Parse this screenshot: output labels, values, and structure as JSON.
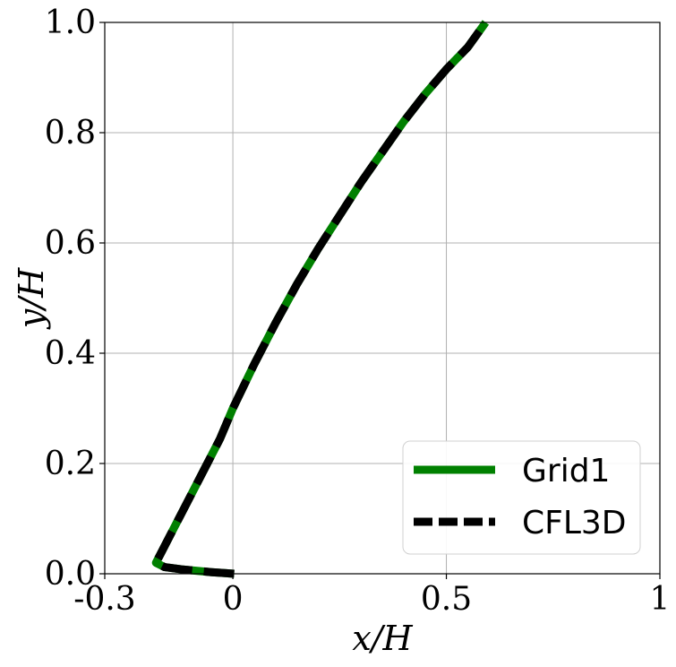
{
  "chart_data": {
    "type": "line",
    "xlabel": "x/H",
    "ylabel": "y/H",
    "xlim": [
      -0.3,
      1.0
    ],
    "ylim": [
      0.0,
      1.0
    ],
    "x_ticks": [
      {
        "value": -0.3,
        "label": "-0.3"
      },
      {
        "value": 0.0,
        "label": "0"
      },
      {
        "value": 0.5,
        "label": "0.5"
      },
      {
        "value": 1.0,
        "label": "1"
      }
    ],
    "y_ticks": [
      {
        "value": 0.0,
        "label": "0.0"
      },
      {
        "value": 0.2,
        "label": "0.2"
      },
      {
        "value": 0.4,
        "label": "0.4"
      },
      {
        "value": 0.6,
        "label": "0.6"
      },
      {
        "value": 0.8,
        "label": "0.8"
      },
      {
        "value": 1.0,
        "label": "1.0"
      }
    ],
    "grid": true,
    "legend_position": "bottom-right",
    "series": [
      {
        "name": "Grid1",
        "color": "#008000",
        "style": "solid",
        "points": [
          [
            0.003,
            0.0
          ],
          [
            -0.05,
            0.003
          ],
          [
            -0.12,
            0.008
          ],
          [
            -0.16,
            0.012
          ],
          [
            -0.18,
            0.02
          ],
          [
            -0.17,
            0.035
          ],
          [
            -0.14,
            0.08
          ],
          [
            -0.1,
            0.14
          ],
          [
            -0.06,
            0.2
          ],
          [
            -0.03,
            0.245
          ],
          [
            0.0,
            0.3
          ],
          [
            0.05,
            0.38
          ],
          [
            0.1,
            0.455
          ],
          [
            0.15,
            0.525
          ],
          [
            0.2,
            0.59
          ],
          [
            0.25,
            0.65
          ],
          [
            0.3,
            0.71
          ],
          [
            0.35,
            0.765
          ],
          [
            0.4,
            0.82
          ],
          [
            0.45,
            0.87
          ],
          [
            0.5,
            0.915
          ],
          [
            0.55,
            0.955
          ],
          [
            0.592,
            1.0
          ]
        ]
      },
      {
        "name": "CFL3D",
        "color": "#000000",
        "style": "dashed",
        "points": [
          [
            0.003,
            0.0
          ],
          [
            -0.05,
            0.003
          ],
          [
            -0.12,
            0.008
          ],
          [
            -0.16,
            0.012
          ],
          [
            -0.18,
            0.02
          ],
          [
            -0.17,
            0.035
          ],
          [
            -0.14,
            0.08
          ],
          [
            -0.1,
            0.14
          ],
          [
            -0.06,
            0.2
          ],
          [
            -0.03,
            0.245
          ],
          [
            0.0,
            0.3
          ],
          [
            0.05,
            0.38
          ],
          [
            0.1,
            0.455
          ],
          [
            0.15,
            0.525
          ],
          [
            0.2,
            0.59
          ],
          [
            0.25,
            0.65
          ],
          [
            0.3,
            0.71
          ],
          [
            0.35,
            0.765
          ],
          [
            0.4,
            0.82
          ],
          [
            0.45,
            0.87
          ],
          [
            0.5,
            0.915
          ],
          [
            0.55,
            0.955
          ],
          [
            0.592,
            1.0
          ]
        ]
      }
    ]
  }
}
